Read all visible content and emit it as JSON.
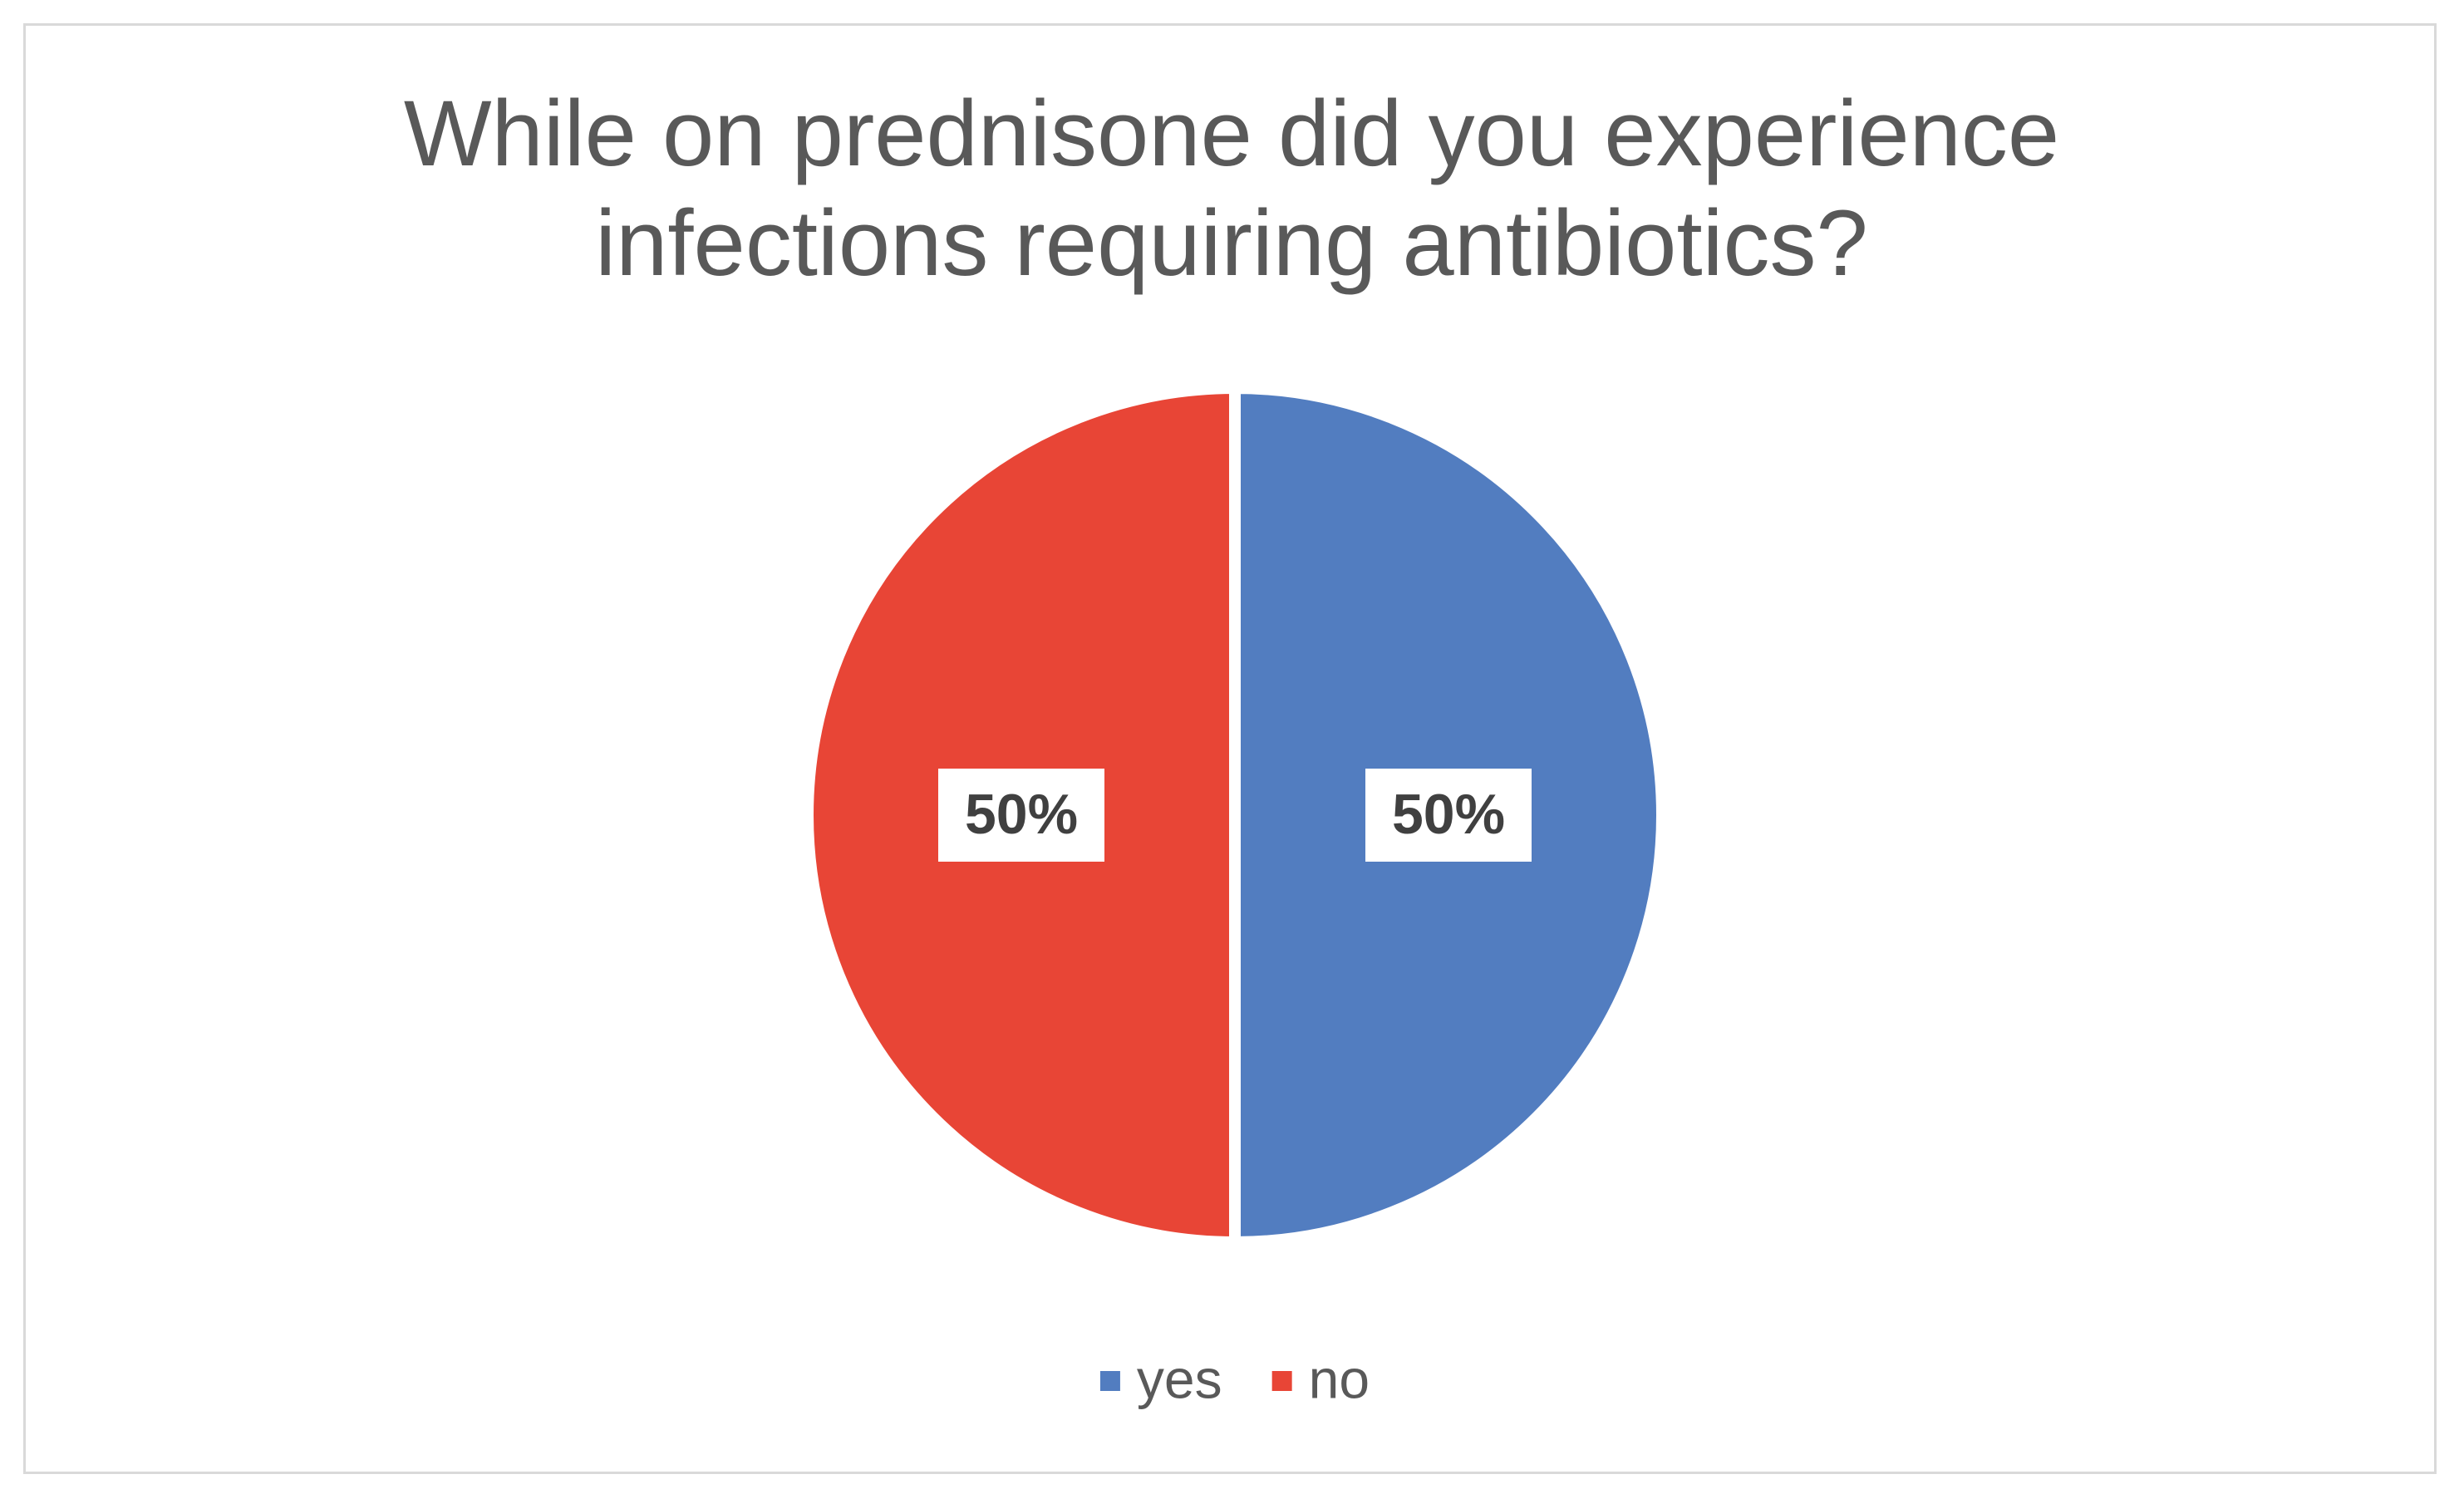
{
  "chart_data": {
    "type": "pie",
    "title": "While on prednisone did you experience infections requiring antibiotics?",
    "categories": [
      "yes",
      "no"
    ],
    "values": [
      50,
      50
    ],
    "value_labels": [
      "50%",
      "50%"
    ],
    "colors": [
      "#527dc0",
      "#e84536"
    ],
    "legend": "bottom"
  }
}
